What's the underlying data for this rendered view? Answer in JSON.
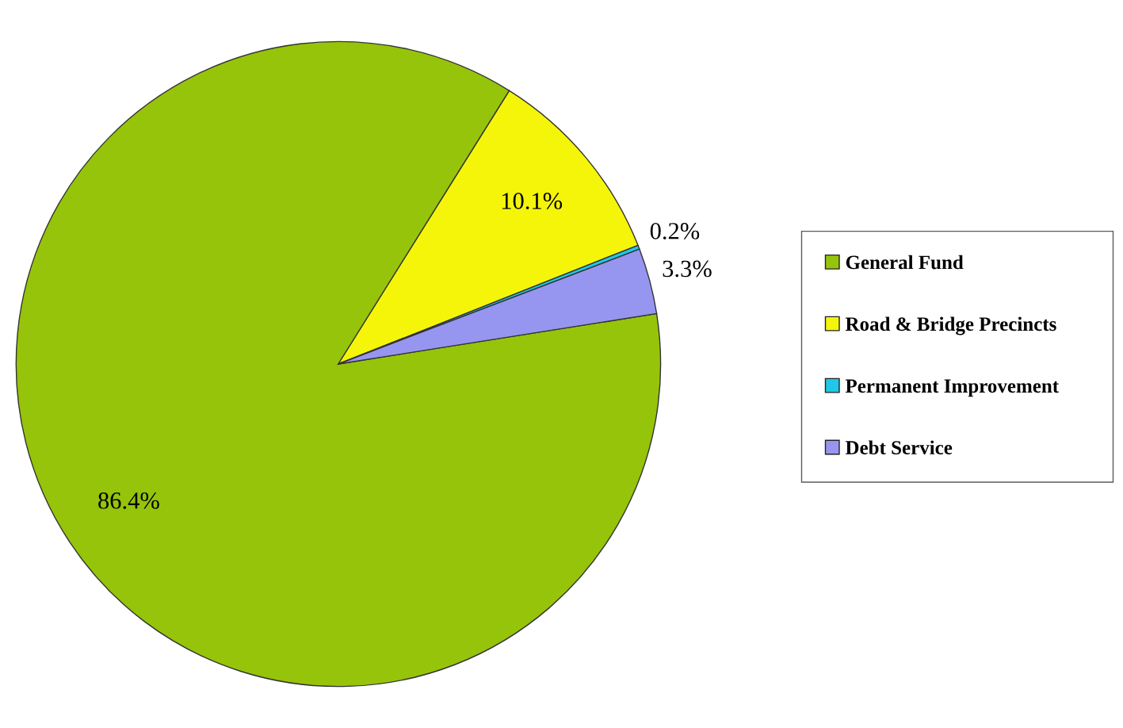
{
  "chart_data": {
    "type": "pie",
    "categories": [
      "General Fund",
      "Road & Bridge Precincts",
      "Permanent Improvement",
      "Debt Service"
    ],
    "values": [
      86.4,
      10.1,
      0.2,
      3.3
    ],
    "colors": [
      "#96c40a",
      "#f5f50a",
      "#1ec8e6",
      "#9696f0"
    ],
    "value_labels": [
      "86.4%",
      "10.1%",
      "0.2%",
      "3.3%"
    ],
    "legend": "right"
  }
}
